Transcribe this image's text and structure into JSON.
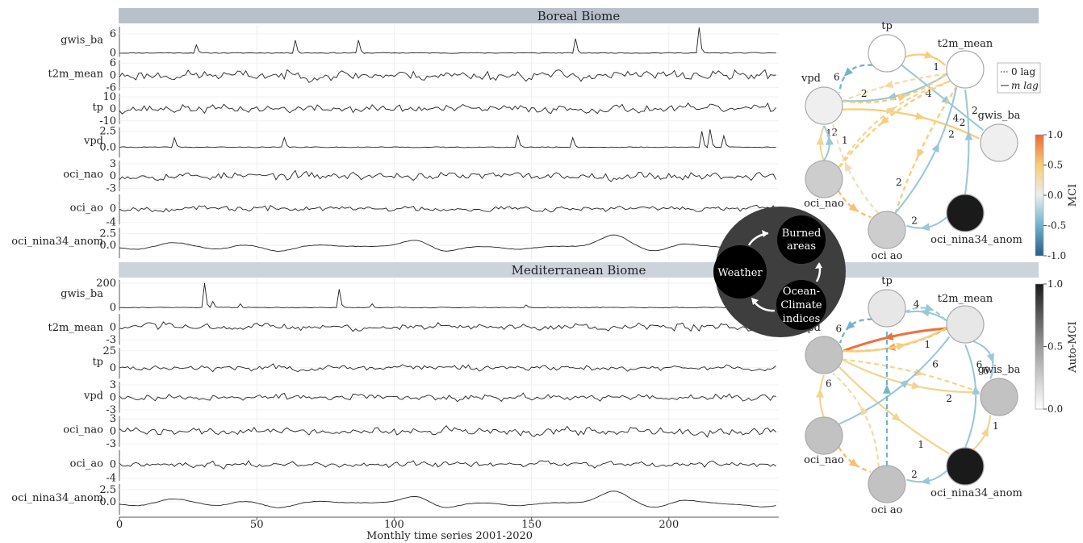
{
  "chart_data": [
    {
      "type": "line",
      "title": "Boreal Biome",
      "xlabel": "Monthly time series 2001-2020",
      "xlim": [
        0,
        240
      ],
      "x_ticks": [
        0,
        50,
        100,
        150,
        200
      ],
      "panels": [
        {
          "name": "gwis_ba",
          "ticks": [
            "6",
            "0"
          ],
          "ylim": [
            -1,
            8
          ],
          "kind": "spiky",
          "seed": 11,
          "spikes": [
            [
              28,
              2.5
            ],
            [
              64,
              4
            ],
            [
              87,
              4
            ],
            [
              166,
              4.5
            ],
            [
              211,
              8
            ]
          ]
        },
        {
          "name": "t2m_mean",
          "ticks": [
            "6",
            "0",
            "-6"
          ],
          "ylim": [
            -7,
            7
          ],
          "kind": "noise",
          "seed": 23,
          "amp": 3.5
        },
        {
          "name": "tp",
          "ticks": [
            "10",
            "0",
            "-10"
          ],
          "ylim": [
            -12,
            12
          ],
          "kind": "noise",
          "seed": 37,
          "amp": 5
        },
        {
          "name": "vpd",
          "ticks": [
            "2.5",
            "0.0"
          ],
          "ylim": [
            -1.5,
            3
          ],
          "kind": "spiky",
          "seed": 41,
          "spikes": [
            [
              20,
              1.5
            ],
            [
              60,
              1.5
            ],
            [
              145,
              1.8
            ],
            [
              165,
              1.5
            ],
            [
              212,
              2.5
            ],
            [
              215,
              2.8
            ],
            [
              220,
              1.8
            ]
          ]
        },
        {
          "name": "oci_nao",
          "ticks": [
            "3",
            "0",
            "-3"
          ],
          "ylim": [
            -3.5,
            3.5
          ],
          "kind": "noise",
          "seed": 53,
          "amp": 1.4
        },
        {
          "name": "oci_ao",
          "ticks": [
            "0",
            "-4"
          ],
          "ylim": [
            -4.5,
            4
          ],
          "kind": "noise",
          "seed": 67,
          "amp": 1.2
        },
        {
          "name": "oci_nina34_anom",
          "ticks": [
            "2.5",
            "0.0"
          ],
          "ylim": [
            -2.5,
            3.5
          ],
          "kind": "smooth",
          "seed": 79
        }
      ],
      "network": {
        "nodes": [
          {
            "name": "tp",
            "label": "tp",
            "auto_mci": 0.0
          },
          {
            "name": "t2m_mean",
            "label": "t2m_mean",
            "auto_mci": 0.0
          },
          {
            "name": "vpd",
            "label": "vpd",
            "auto_mci": 0.08
          },
          {
            "name": "gwis_ba",
            "label": "gwis_ba",
            "auto_mci": 0.08
          },
          {
            "name": "oci_nao",
            "label": "oci_nao",
            "auto_mci": 0.25
          },
          {
            "name": "oci_ao",
            "label": "oci ao",
            "auto_mci": 0.25
          },
          {
            "name": "oci_nina34_anom",
            "label": "oci_nina34_anom",
            "auto_mci": 1.0
          }
        ],
        "edges": [
          {
            "from": "tp",
            "to": "t2m_mean",
            "mci": 0.3,
            "lag": "1",
            "contemp": false,
            "curve": -0.15
          },
          {
            "from": "tp",
            "to": "vpd",
            "mci": -0.3,
            "lag": "6",
            "contemp": true,
            "curve": 0.25
          },
          {
            "from": "tp",
            "to": "gwis_ba",
            "mci": -0.2,
            "lag": "2",
            "contemp": false,
            "curve": 0.0
          },
          {
            "from": "t2m_mean",
            "to": "vpd",
            "mci": 0.2,
            "lag": "",
            "contemp": true,
            "curve": 0.05
          },
          {
            "from": "t2m_mean",
            "to": "vpd",
            "mci": -0.2,
            "lag": "2",
            "contemp": false,
            "curve": -0.12
          },
          {
            "from": "vpd",
            "to": "t2m_mean",
            "mci": 0.3,
            "lag": "4",
            "contemp": true,
            "curve": 0.15
          },
          {
            "from": "t2m_mean",
            "to": "oci_nao",
            "mci": 0.3,
            "lag": "",
            "contemp": true,
            "curve": 0.1
          },
          {
            "from": "t2m_mean",
            "to": "oci_ao",
            "mci": 0.3,
            "lag": "2",
            "contemp": true,
            "curve": 0.05
          },
          {
            "from": "vpd",
            "to": "gwis_ba",
            "mci": 0.3,
            "lag": "2",
            "contemp": false,
            "curve": -0.1
          },
          {
            "from": "oci_nao",
            "to": "t2m_mean",
            "mci": 0.25,
            "lag": "",
            "contemp": true,
            "curve": -0.15
          },
          {
            "from": "oci_nao",
            "to": "vpd",
            "mci": 0.25,
            "lag": "1",
            "contemp": false,
            "curve": -0.1
          },
          {
            "from": "oci_nao",
            "to": "vpd",
            "mci": -0.2,
            "lag": "2",
            "contemp": false,
            "curve": 0.15
          },
          {
            "from": "oci_ao",
            "to": "vpd",
            "mci": 0.15,
            "lag": "1",
            "contemp": true,
            "curve": -0.1
          },
          {
            "from": "oci_nao",
            "to": "oci_ao",
            "mci": 0.35,
            "lag": "",
            "contemp": true,
            "curve": 0.1
          },
          {
            "from": "oci_ao",
            "to": "t2m_mean",
            "mci": -0.2,
            "lag": "4",
            "contemp": false,
            "curve": 0.1
          },
          {
            "from": "oci_nina34_anom",
            "to": "oci_ao",
            "mci": -0.2,
            "lag": "2",
            "contemp": false,
            "curve": -0.15
          },
          {
            "from": "oci_nina34_anom",
            "to": "t2m_mean",
            "mci": -0.2,
            "lag": "2",
            "contemp": false,
            "curve": 0.05
          }
        ]
      }
    },
    {
      "type": "line",
      "title": "Mediterranean Biome",
      "xlabel": "Monthly time series 2001-2020",
      "xlim": [
        0,
        240
      ],
      "x_ticks": [
        0,
        50,
        100,
        150,
        200
      ],
      "panels": [
        {
          "name": "gwis_ba",
          "ticks": [
            "200",
            "0"
          ],
          "ylim": [
            -20,
            220
          ],
          "kind": "spiky",
          "seed": 91,
          "spikes": [
            [
              31,
              200
            ],
            [
              34,
              50
            ],
            [
              44,
              30
            ],
            [
              80,
              150
            ],
            [
              92,
              30
            ],
            [
              148,
              20
            ]
          ]
        },
        {
          "name": "t2m_mean",
          "ticks": [
            "0",
            "-3"
          ],
          "ylim": [
            -4,
            3
          ],
          "kind": "noise",
          "seed": 103,
          "amp": 1.3
        },
        {
          "name": "tp",
          "ticks": [
            "25",
            "0"
          ],
          "ylim": [
            -15,
            28
          ],
          "kind": "noise",
          "seed": 111,
          "amp": 6
        },
        {
          "name": "vpd",
          "ticks": [
            "3",
            "0",
            "-3"
          ],
          "ylim": [
            -3.5,
            3.5
          ],
          "kind": "noise",
          "seed": 127,
          "amp": 1.1
        },
        {
          "name": "oci_nao",
          "ticks": [
            "3",
            "0",
            "-3"
          ],
          "ylim": [
            -3.5,
            3.5
          ],
          "kind": "noise",
          "seed": 139,
          "amp": 1.4
        },
        {
          "name": "oci_ao",
          "ticks": [
            "0",
            "-4"
          ],
          "ylim": [
            -4.5,
            4
          ],
          "kind": "noise",
          "seed": 149,
          "amp": 1.2
        },
        {
          "name": "oci_nina34_anom",
          "ticks": [
            "2.5",
            "0.0"
          ],
          "ylim": [
            -2.5,
            3.5
          ],
          "kind": "smooth",
          "seed": 79
        }
      ],
      "network": {
        "nodes": [
          {
            "name": "tp",
            "label": "tp",
            "auto_mci": 0.12
          },
          {
            "name": "t2m_mean",
            "label": "t2m_mean",
            "auto_mci": 0.12
          },
          {
            "name": "vpd",
            "label": "vpd",
            "auto_mci": 0.3
          },
          {
            "name": "gwis_ba",
            "label": "gwis_ba",
            "auto_mci": 0.3
          },
          {
            "name": "oci_nao",
            "label": "oci_nao",
            "auto_mci": 0.3
          },
          {
            "name": "oci_ao",
            "label": "oci ao",
            "auto_mci": 0.3
          },
          {
            "name": "oci_nina34_anom",
            "label": "oci_nina34_anom",
            "auto_mci": 1.0
          }
        ],
        "edges": [
          {
            "from": "tp",
            "to": "t2m_mean",
            "mci": -0.2,
            "lag": "",
            "contemp": true,
            "curve": -0.2
          },
          {
            "from": "tp",
            "to": "vpd",
            "mci": -0.3,
            "lag": "6",
            "contemp": true,
            "curve": 0.2
          },
          {
            "from": "t2m_mean",
            "to": "vpd",
            "mci": 0.6,
            "lag": "",
            "contemp": false,
            "curve": 0.05
          },
          {
            "from": "t2m_mean",
            "to": "vpd",
            "mci": 0.45,
            "lag": "",
            "contemp": true,
            "curve": -0.1
          },
          {
            "from": "t2m_mean",
            "to": "tp",
            "mci": -0.2,
            "lag": "4",
            "contemp": false,
            "curve": 0.1
          },
          {
            "from": "vpd",
            "to": "t2m_mean",
            "mci": 0.3,
            "lag": "1",
            "contemp": false,
            "curve": 0.1
          },
          {
            "from": "vpd",
            "to": "gwis_ba",
            "mci": 0.25,
            "lag": "",
            "contemp": true,
            "curve": -0.05
          },
          {
            "from": "vpd",
            "to": "gwis_ba",
            "mci": 0.25,
            "lag": "2",
            "contemp": false,
            "curve": 0.1
          },
          {
            "from": "vpd",
            "to": "oci_nina34_anom",
            "mci": 0.25,
            "lag": "1",
            "contemp": false,
            "curve": 0.05
          },
          {
            "from": "t2m_mean",
            "to": "gwis_ba",
            "mci": -0.2,
            "lag": "6",
            "contemp": false,
            "curve": -0.25
          },
          {
            "from": "oci_nao",
            "to": "vpd",
            "mci": 0.25,
            "lag": "6",
            "contemp": false,
            "curve": -0.1
          },
          {
            "from": "oci_nao",
            "to": "t2m_mean",
            "mci": -0.2,
            "lag": "6",
            "contemp": false,
            "curve": 0.1
          },
          {
            "from": "oci_ao",
            "to": "tp",
            "mci": -0.3,
            "lag": "",
            "contemp": true,
            "curve": 0.0
          },
          {
            "from": "oci_ao",
            "to": "vpd",
            "mci": 0.2,
            "lag": "",
            "contemp": true,
            "curve": 0.15
          },
          {
            "from": "oci_nao",
            "to": "oci_ao",
            "mci": 0.35,
            "lag": "",
            "contemp": true,
            "curve": 0.1
          },
          {
            "from": "oci_nina34_anom",
            "to": "oci_ao",
            "mci": -0.2,
            "lag": "2",
            "contemp": false,
            "curve": -0.15
          },
          {
            "from": "oci_nina34_anom",
            "to": "gwis_ba",
            "mci": 0.25,
            "lag": "1",
            "contemp": false,
            "curve": 0.1
          },
          {
            "from": "oci_nina34_anom",
            "to": "t2m_mean",
            "mci": -0.2,
            "lag": "6",
            "contemp": false,
            "curve": 0.15
          }
        ]
      }
    }
  ],
  "legend": {
    "contemp_label": "0 lag",
    "lag_label": "m lag"
  },
  "mci_colorbar": {
    "label": "MCI",
    "ticks": [
      "1.0",
      "0.5",
      "0.0",
      "-0.5",
      "-1.0"
    ],
    "range": [
      -1,
      1
    ]
  },
  "auto_colorbar": {
    "label": "Auto-MCI",
    "ticks": [
      "1.0",
      "0.5",
      "0.0"
    ],
    "range": [
      0,
      1
    ]
  },
  "schematic": {
    "weather": "Weather",
    "burned": [
      "Burned",
      "areas"
    ],
    "ocean": [
      "Ocean-",
      "Climate",
      "indices"
    ]
  },
  "colors": {
    "strip": "#b8c0ca",
    "strip2": "#cdd3da",
    "grid": "#ececec"
  }
}
